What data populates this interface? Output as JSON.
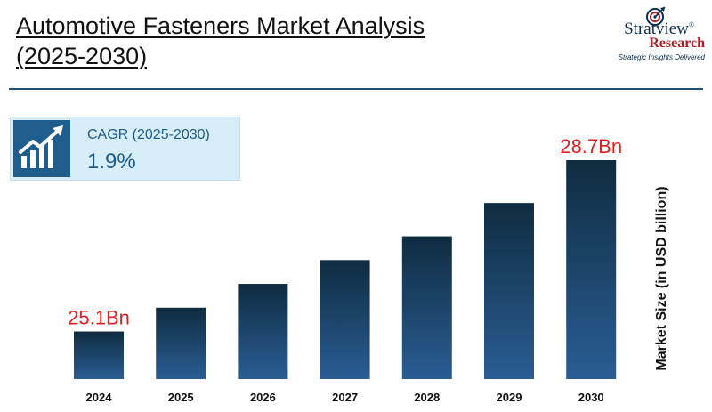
{
  "header": {
    "title_line1": "Automotive Fasteners Market Analysis",
    "title_line2": "(2025-2030)"
  },
  "logo": {
    "brand": "Stratview",
    "registered": "®",
    "brand_sub": "Research",
    "tagline": "Strategic Insights Delivered"
  },
  "cagr": {
    "label": "CAGR (2025-2030)",
    "value": "1.9%",
    "icon": "growth-chart-icon"
  },
  "colors": {
    "bar_top": "#0f2c40",
    "bar_bottom": "#2a5d94",
    "highlight_label": "#e02020",
    "accent": "#1f5e8c"
  },
  "chart_data": {
    "type": "bar",
    "ylabel": "Market Size (in USD billion)",
    "categories": [
      "2024",
      "2025",
      "2026",
      "2027",
      "2028",
      "2029",
      "2030"
    ],
    "values": [
      25.1,
      25.6,
      26.1,
      26.6,
      27.1,
      27.8,
      28.7
    ],
    "data_labels": [
      "25.1Bn",
      "",
      "",
      "",
      "",
      "",
      "28.7Bn"
    ],
    "ylim": [
      24.1,
      28.7
    ],
    "grid": false,
    "legend": "none"
  }
}
